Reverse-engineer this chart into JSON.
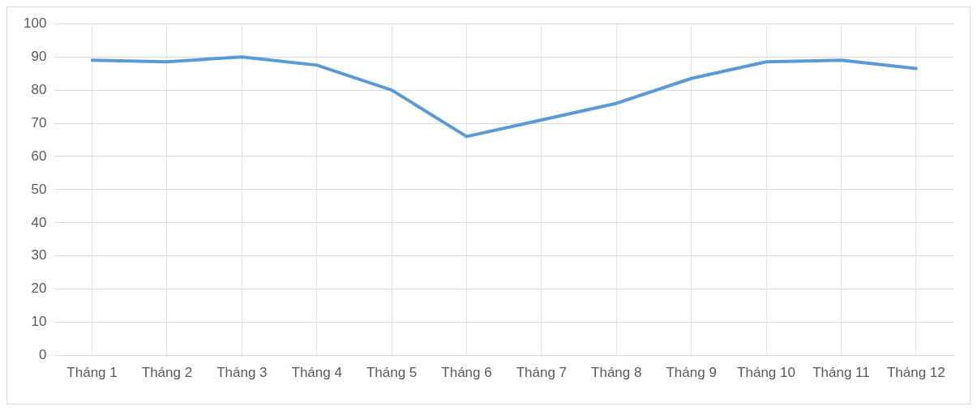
{
  "chart_data": {
    "type": "line",
    "categories": [
      "Tháng 1",
      "Tháng 2",
      "Tháng 3",
      "Tháng 4",
      "Tháng 5",
      "Tháng 6",
      "Tháng 7",
      "Tháng 8",
      "Tháng 9",
      "Tháng 10",
      "Tháng 11",
      "Tháng 12"
    ],
    "series": [
      {
        "color": "#5b9bd5",
        "values": [
          89,
          88.5,
          90,
          87.5,
          80,
          66,
          71,
          76,
          83.5,
          88.5,
          89,
          86.5
        ]
      }
    ],
    "ylim": [
      0,
      100
    ],
    "yticks": [
      0,
      10,
      20,
      30,
      40,
      50,
      60,
      70,
      80,
      90,
      100
    ],
    "grid": true,
    "legend": false,
    "marker": "none",
    "line_style": "solid"
  }
}
